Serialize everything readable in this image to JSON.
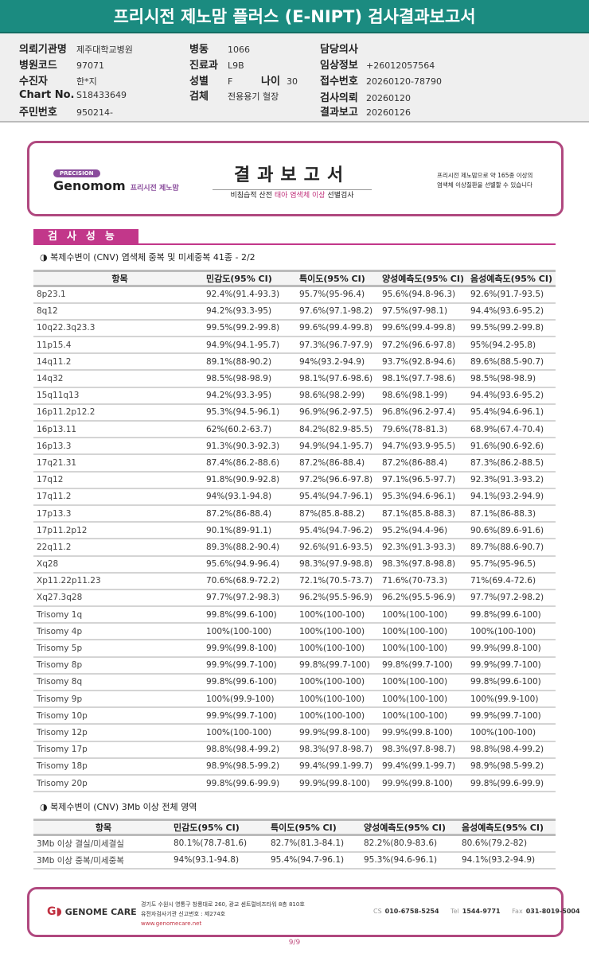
{
  "header": {
    "title": "프리시전 제노맘 플러스 (E-NIPT) 검사결과보고서"
  },
  "patient": {
    "institution_label": "의뢰기관명",
    "institution": "제주대학교병원",
    "hospital_code_label": "병원코드",
    "hospital_code": "97071",
    "patient_label": "수진자",
    "patient": "한*지",
    "chart_label": "Chart No.",
    "chart": "S18433649",
    "rrn_label": "주민번호",
    "rrn": "950214-",
    "ward_label": "병동",
    "ward": "1066",
    "dept_label": "진료과",
    "dept": "L9B",
    "sex_label": "성별",
    "sex": "F",
    "age_label": "나이",
    "age": "30",
    "specimen_label": "검체",
    "specimen": "전용용기 혈장",
    "doctor_label": "담당의사",
    "doctor": "",
    "clinical_label": "임상정보",
    "clinical": "+26012057564",
    "receipt_label": "접수번호",
    "receipt": "20260120-78790",
    "request_label": "검사의뢰",
    "request": "20260120",
    "report_label": "결과보고",
    "report": "20260126"
  },
  "banner": {
    "precision": "PRECISION",
    "brand": "Genomom",
    "brand_kr": "프리시전 제노맘",
    "title": "결과보고서",
    "subtitle_pre": "비침습적 산전 ",
    "subtitle_pink": "태아 염색체 이상",
    "subtitle_post": " 선별검사",
    "right_line1": "프리시전 제노맘으로 약 165종 이상의",
    "right_line2": "염색체 이상질환을 선별할 수 있습니다"
  },
  "section": {
    "title": "검사성능"
  },
  "table1": {
    "caption": "◑ 복제수변이 (CNV) 염색체 중복 및 미세중복 41종 - 2/2",
    "headers": [
      "항목",
      "민감도(95% CI)",
      "특이도(95% CI)",
      "양성예측도(95% CI)",
      "음성예측도(95% CI)"
    ],
    "rows": [
      [
        "8p23.1",
        "92.4%(91.4-93.3)",
        "95.7%(95-96.4)",
        "95.6%(94.8-96.3)",
        "92.6%(91.7-93.5)"
      ],
      [
        "8q12",
        "94.2%(93.3-95)",
        "97.6%(97.1-98.2)",
        "97.5%(97-98.1)",
        "94.4%(93.6-95.2)"
      ],
      [
        "10q22.3q23.3",
        "99.5%(99.2-99.8)",
        "99.6%(99.4-99.8)",
        "99.6%(99.4-99.8)",
        "99.5%(99.2-99.8)"
      ],
      [
        "11p15.4",
        "94.9%(94.1-95.7)",
        "97.3%(96.7-97.9)",
        "97.2%(96.6-97.8)",
        "95%(94.2-95.8)"
      ],
      [
        "14q11.2",
        "89.1%(88-90.2)",
        "94%(93.2-94.9)",
        "93.7%(92.8-94.6)",
        "89.6%(88.5-90.7)"
      ],
      [
        "14q32",
        "98.5%(98-98.9)",
        "98.1%(97.6-98.6)",
        "98.1%(97.7-98.6)",
        "98.5%(98-98.9)"
      ],
      [
        "15q11q13",
        "94.2%(93.3-95)",
        "98.6%(98.2-99)",
        "98.6%(98.1-99)",
        "94.4%(93.6-95.2)"
      ],
      [
        "16p11.2p12.2",
        "95.3%(94.5-96.1)",
        "96.9%(96.2-97.5)",
        "96.8%(96.2-97.4)",
        "95.4%(94.6-96.1)"
      ],
      [
        "16p13.11",
        "62%(60.2-63.7)",
        "84.2%(82.9-85.5)",
        "79.6%(78-81.3)",
        "68.9%(67.4-70.4)"
      ],
      [
        "16p13.3",
        "91.3%(90.3-92.3)",
        "94.9%(94.1-95.7)",
        "94.7%(93.9-95.5)",
        "91.6%(90.6-92.6)"
      ],
      [
        "17q21.31",
        "87.4%(86.2-88.6)",
        "87.2%(86-88.4)",
        "87.2%(86-88.4)",
        "87.3%(86.2-88.5)"
      ],
      [
        "17q12",
        "91.8%(90.9-92.8)",
        "97.2%(96.6-97.8)",
        "97.1%(96.5-97.7)",
        "92.3%(91.3-93.2)"
      ],
      [
        "17q11.2",
        "94%(93.1-94.8)",
        "95.4%(94.7-96.1)",
        "95.3%(94.6-96.1)",
        "94.1%(93.2-94.9)"
      ],
      [
        "17p13.3",
        "87.2%(86-88.4)",
        "87%(85.8-88.2)",
        "87.1%(85.8-88.3)",
        "87.1%(86-88.3)"
      ],
      [
        "17p11.2p12",
        "90.1%(89-91.1)",
        "95.4%(94.7-96.2)",
        "95.2%(94.4-96)",
        "90.6%(89.6-91.6)"
      ],
      [
        "22q11.2",
        "89.3%(88.2-90.4)",
        "92.6%(91.6-93.5)",
        "92.3%(91.3-93.3)",
        "89.7%(88.6-90.7)"
      ],
      [
        "Xq28",
        "95.6%(94.9-96.4)",
        "98.3%(97.9-98.8)",
        "98.3%(97.8-98.8)",
        "95.7%(95-96.5)"
      ],
      [
        "Xp11.22p11.23",
        "70.6%(68.9-72.2)",
        "72.1%(70.5-73.7)",
        "71.6%(70-73.3)",
        "71%(69.4-72.6)"
      ],
      [
        "Xq27.3q28",
        "97.7%(97.2-98.3)",
        "96.2%(95.5-96.9)",
        "96.2%(95.5-96.9)",
        "97.7%(97.2-98.2)"
      ],
      [
        "Trisomy 1q",
        "99.8%(99.6-100)",
        "100%(100-100)",
        "100%(100-100)",
        "99.8%(99.6-100)"
      ],
      [
        "Trisomy 4p",
        "100%(100-100)",
        "100%(100-100)",
        "100%(100-100)",
        "100%(100-100)"
      ],
      [
        "Trisomy 5p",
        "99.9%(99.8-100)",
        "100%(100-100)",
        "100%(100-100)",
        "99.9%(99.8-100)"
      ],
      [
        "Trisomy 8p",
        "99.9%(99.7-100)",
        "99.8%(99.7-100)",
        "99.8%(99.7-100)",
        "99.9%(99.7-100)"
      ],
      [
        "Trisomy 8q",
        "99.8%(99.6-100)",
        "100%(100-100)",
        "100%(100-100)",
        "99.8%(99.6-100)"
      ],
      [
        "Trisomy 9p",
        "100%(99.9-100)",
        "100%(100-100)",
        "100%(100-100)",
        "100%(99.9-100)"
      ],
      [
        "Trisomy 10p",
        "99.9%(99.7-100)",
        "100%(100-100)",
        "100%(100-100)",
        "99.9%(99.7-100)"
      ],
      [
        "Trisomy 12p",
        "100%(100-100)",
        "99.9%(99.8-100)",
        "99.9%(99.8-100)",
        "100%(100-100)"
      ],
      [
        "Trisomy 17p",
        "98.8%(98.4-99.2)",
        "98.3%(97.8-98.7)",
        "98.3%(97.8-98.7)",
        "98.8%(98.4-99.2)"
      ],
      [
        "Trisomy 18p",
        "98.9%(98.5-99.2)",
        "99.4%(99.1-99.7)",
        "99.4%(99.1-99.7)",
        "98.9%(98.5-99.2)"
      ],
      [
        "Trisomy 20p",
        "99.8%(99.6-99.9)",
        "99.9%(99.8-100)",
        "99.9%(99.8-100)",
        "99.8%(99.6-99.9)"
      ]
    ]
  },
  "table2": {
    "caption": "◑ 복제수변이 (CNV) 3Mb 이상 전체 영역",
    "headers": [
      "항목",
      "민감도(95% CI)",
      "특이도(95% CI)",
      "양성예측도(95% CI)",
      "음성예측도(95% CI)"
    ],
    "rows": [
      [
        "3Mb 이상 결실/미세결실",
        "80.1%(78.7-81.6)",
        "82.7%(81.3-84.1)",
        "82.2%(80.9-83.6)",
        "80.6%(79.2-82)"
      ],
      [
        "3Mb 이상 중복/미세중복",
        "94%(93.1-94.8)",
        "95.4%(94.7-96.1)",
        "95.3%(94.6-96.1)",
        "94.1%(93.2-94.9)"
      ]
    ]
  },
  "footer": {
    "logo": "GENOME CARE",
    "addr1": "경기도 수원시 영통구 창룡대로 260, 광교 센트럴비즈타워 8층 810호",
    "addr2": "유전자검사기관 신고번호 : 제274호",
    "url": "www.genomecare.net",
    "cs_label": "CS",
    "cs": "010-6758-5254",
    "tel_label": "Tel",
    "tel": "1544-9771",
    "fax_label": "Fax",
    "fax": "031-8019-5004"
  },
  "page": "9/9",
  "colors": {
    "header_teal": "#1b8b80",
    "accent_pink": "#c2378a",
    "frame": "#b0487f"
  }
}
